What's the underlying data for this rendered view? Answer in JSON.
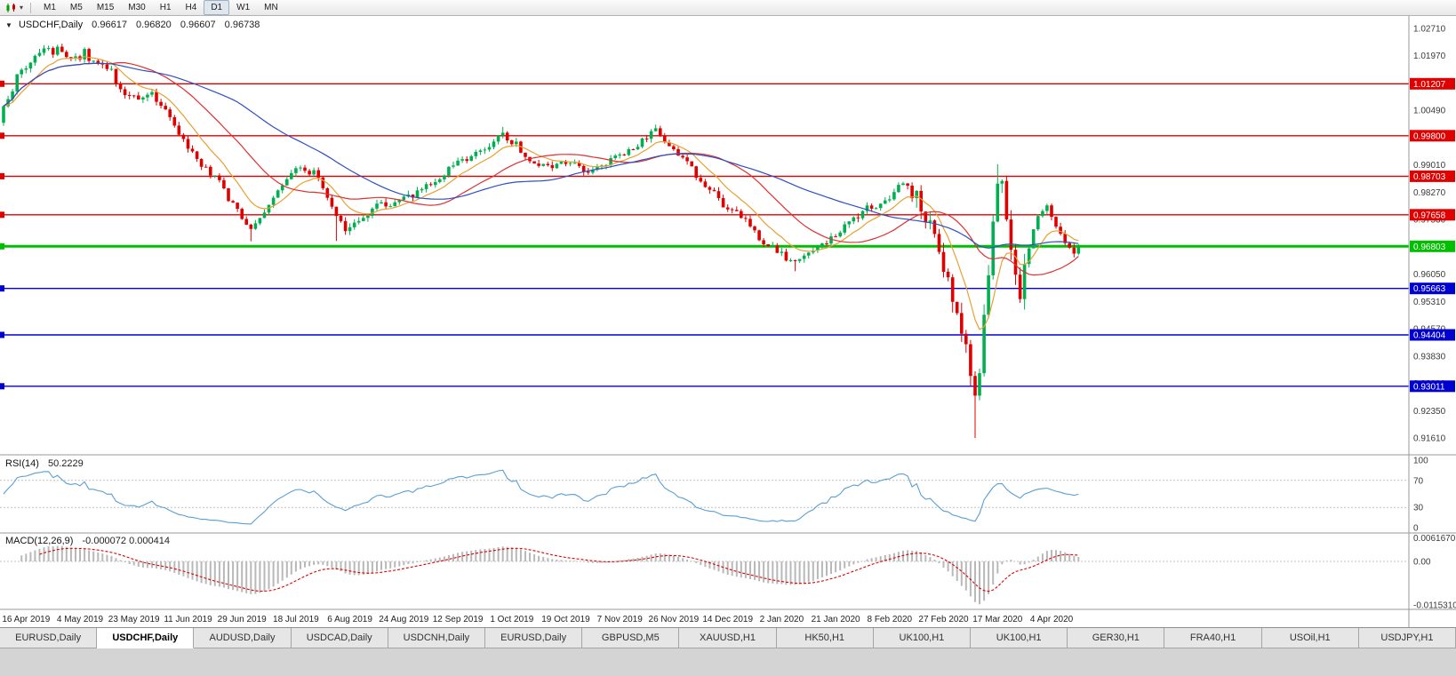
{
  "toolbar": {
    "timeframes": [
      "M1",
      "M5",
      "M15",
      "M30",
      "H1",
      "H4",
      "D1",
      "W1",
      "MN"
    ],
    "active": "D1"
  },
  "chart": {
    "symbol_title": "USDCHF,Daily",
    "ohlc": {
      "open": "0.96617",
      "high": "0.96820",
      "low": "0.96607",
      "close": "0.96738"
    }
  },
  "chart_data": {
    "type": "candlestick",
    "symbol": "USDCHF",
    "timeframe": "Daily",
    "last_close": 0.96738,
    "num_candles": 240,
    "price_range": [
      0.9125,
      1.029
    ],
    "up_color": "#00b050",
    "down_color": "#e00000",
    "anchors": [
      [
        0,
        1.006
      ],
      [
        3,
        1.0135
      ],
      [
        6,
        1.018
      ],
      [
        9,
        1.0205
      ],
      [
        12,
        1.0215
      ],
      [
        15,
        1.0185
      ],
      [
        18,
        1.0205
      ],
      [
        21,
        1.0175
      ],
      [
        24,
        1.015
      ],
      [
        27,
        1.0095
      ],
      [
        30,
        1.0085
      ],
      [
        33,
        1.01
      ],
      [
        36,
        1.0045
      ],
      [
        40,
        0.9965
      ],
      [
        44,
        0.9905
      ],
      [
        48,
        0.985
      ],
      [
        52,
        0.9775
      ],
      [
        55,
        0.9725
      ],
      [
        58,
        0.9765
      ],
      [
        62,
        0.985
      ],
      [
        66,
        0.9898
      ],
      [
        70,
        0.987
      ],
      [
        73,
        0.979
      ],
      [
        76,
        0.9722
      ],
      [
        79,
        0.9748
      ],
      [
        83,
        0.979
      ],
      [
        87,
        0.9795
      ],
      [
        91,
        0.9822
      ],
      [
        95,
        0.9855
      ],
      [
        99,
        0.9888
      ],
      [
        103,
        0.9922
      ],
      [
        107,
        0.9948
      ],
      [
        111,
        0.9985
      ],
      [
        114,
        0.9955
      ],
      [
        118,
        0.9902
      ],
      [
        122,
        0.989
      ],
      [
        126,
        0.991
      ],
      [
        130,
        0.9882
      ],
      [
        134,
        0.9905
      ],
      [
        138,
        0.9935
      ],
      [
        142,
        0.9965
      ],
      [
        145,
        0.9992
      ],
      [
        148,
        0.9958
      ],
      [
        152,
        0.9902
      ],
      [
        156,
        0.9848
      ],
      [
        160,
        0.9795
      ],
      [
        164,
        0.9762
      ],
      [
        168,
        0.9705
      ],
      [
        172,
        0.9665
      ],
      [
        176,
        0.9635
      ],
      [
        180,
        0.9662
      ],
      [
        184,
        0.97
      ],
      [
        188,
        0.9742
      ],
      [
        192,
        0.9782
      ],
      [
        196,
        0.9805
      ],
      [
        200,
        0.9852
      ],
      [
        203,
        0.9805
      ],
      [
        206,
        0.9742
      ],
      [
        208,
        0.9655
      ],
      [
        210,
        0.958
      ],
      [
        212,
        0.9505
      ],
      [
        214,
        0.94
      ],
      [
        216,
        0.9265
      ],
      [
        217,
        0.933
      ],
      [
        218,
        0.948
      ],
      [
        219,
        0.961
      ],
      [
        220,
        0.9755
      ],
      [
        221,
        0.987
      ],
      [
        222,
        0.9838
      ],
      [
        223,
        0.976
      ],
      [
        224,
        0.9695
      ],
      [
        225,
        0.9618
      ],
      [
        226,
        0.9562
      ],
      [
        227,
        0.9608
      ],
      [
        228,
        0.968
      ],
      [
        230,
        0.976
      ],
      [
        232,
        0.979
      ],
      [
        234,
        0.974
      ],
      [
        236,
        0.969
      ],
      [
        238,
        0.9668
      ],
      [
        239,
        0.9674
      ]
    ],
    "special_candles": {
      "12": {
        "high": 1.0227
      },
      "55": {
        "low": 0.9694
      },
      "74": {
        "low": 0.9695
      },
      "111": {
        "high": 1.0004
      },
      "145": {
        "high": 1.001
      },
      "176": {
        "low": 0.9613
      },
      "216": {
        "low": 0.9161
      },
      "221": {
        "high": 0.9903
      }
    },
    "levels": [
      {
        "price": 1.01207,
        "label": "1.01207",
        "color": "#e00000",
        "kind": "resistance"
      },
      {
        "price": 0.998,
        "label": "0.99800",
        "color": "#e00000",
        "kind": "resistance"
      },
      {
        "price": 0.98703,
        "label": "0.98703",
        "color": "#e00000",
        "kind": "resistance"
      },
      {
        "price": 0.97658,
        "label": "0.97658",
        "color": "#e00000",
        "kind": "resistance"
      },
      {
        "price": 0.96803,
        "label": "0.96803",
        "color": "#00bf00",
        "width": 3,
        "kind": "current"
      },
      {
        "price": 0.95663,
        "label": "0.95663",
        "color": "#0000d0",
        "kind": "support"
      },
      {
        "price": 0.94404,
        "label": "0.94404",
        "color": "#0000d0",
        "kind": "support"
      },
      {
        "price": 0.93011,
        "label": "0.93011",
        "color": "#0000d0",
        "kind": "support"
      }
    ],
    "axis_ticks": [
      "1.02710",
      "1.01970",
      "1.01230",
      "1.00490",
      "0.99750",
      "0.99010",
      "0.98270",
      "0.97530",
      "0.96790",
      "0.96050",
      "0.95310",
      "0.94570",
      "0.93830",
      "0.93090",
      "0.92350",
      "0.91610"
    ],
    "date_labels": [
      "16 Apr 2019",
      "4 May 2019",
      "23 May 2019",
      "11 Jun 2019",
      "29 Jun 2019",
      "18 Jul 2019",
      "6 Aug 2019",
      "24 Aug 2019",
      "12 Sep 2019",
      "1 Oct 2019",
      "19 Oct 2019",
      "7 Nov 2019",
      "26 Nov 2019",
      "14 Dec 2019",
      "2 Jan 2020",
      "21 Jan 2020",
      "8 Feb 2020",
      "27 Feb 2020",
      "17 Mar 2020",
      "4 Apr 2020"
    ],
    "moving_averages": [
      {
        "period": 10,
        "type": "ema",
        "color": "#e8a030"
      },
      {
        "period": 25,
        "type": "sma",
        "color": "#e03030"
      },
      {
        "period": 50,
        "type": "sma",
        "color": "#2d4fc4"
      }
    ]
  },
  "rsi": {
    "name": "RSI(14)",
    "value": "50.2229",
    "period": 14,
    "color": "#5a9fd4",
    "levels": [
      70,
      30
    ],
    "ticks": [
      "100",
      "70",
      "30",
      "0"
    ]
  },
  "macd": {
    "name": "MACD(12,26,9)",
    "values": "-0.000072 0.000414",
    "fast": 12,
    "slow": 26,
    "signal": 9,
    "histogram_color": "#b8b8b8",
    "signal_color": "#e00000",
    "ticks": [
      "0.0061670",
      "0.00",
      "-0.0115310"
    ]
  },
  "tabs": [
    {
      "label": "EURUSD,Daily"
    },
    {
      "label": "USDCHF,Daily",
      "active": true
    },
    {
      "label": "AUDUSD,Daily"
    },
    {
      "label": "USDCAD,Daily"
    },
    {
      "label": "USDCNH,Daily"
    },
    {
      "label": "EURUSD,Daily"
    },
    {
      "label": "GBPUSD,M5"
    },
    {
      "label": "XAUUSD,H1"
    },
    {
      "label": "HK50,H1"
    },
    {
      "label": "UK100,H1"
    },
    {
      "label": "UK100,H1"
    },
    {
      "label": "GER30,H1"
    },
    {
      "label": "FRA40,H1"
    },
    {
      "label": "USOil,H1"
    },
    {
      "label": "USDJPY,H1"
    }
  ]
}
